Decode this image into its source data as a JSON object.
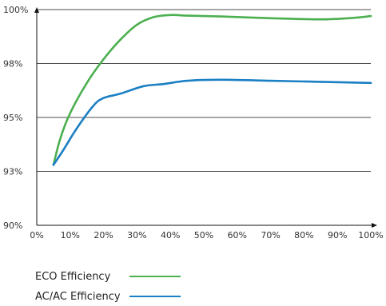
{
  "chart_data": {
    "type": "line",
    "x_ticks": [
      "0%",
      "10%",
      "20%",
      "30%",
      "40%",
      "50%",
      "60%",
      "70%",
      "80%",
      "90%",
      "100%"
    ],
    "y_ticks": [
      "90%",
      "93%",
      "95%",
      "98%",
      "100%"
    ],
    "xlim": [
      0,
      100
    ],
    "grid": true,
    "legend_position": "bottom-left",
    "series": [
      {
        "name": "ECO Efficiency",
        "color": "#4CAF50",
        "x": [
          5,
          7,
          10,
          15,
          20,
          25,
          30,
          35,
          40,
          45,
          55,
          70,
          85,
          95,
          100
        ],
        "y_level": [
          0.28,
          0.4,
          0.52,
          0.66,
          0.77,
          0.86,
          0.93,
          0.965,
          0.975,
          0.972,
          0.968,
          0.96,
          0.955,
          0.962,
          0.97
        ]
      },
      {
        "name": "AC/AC Efficiency",
        "color": "#1B7FC4",
        "x": [
          5,
          8,
          12,
          17,
          20,
          25,
          32,
          38,
          45,
          55,
          70,
          85,
          100
        ],
        "y_level": [
          0.28,
          0.35,
          0.45,
          0.555,
          0.59,
          0.61,
          0.645,
          0.655,
          0.67,
          0.675,
          0.67,
          0.665,
          0.66
        ]
      }
    ]
  }
}
